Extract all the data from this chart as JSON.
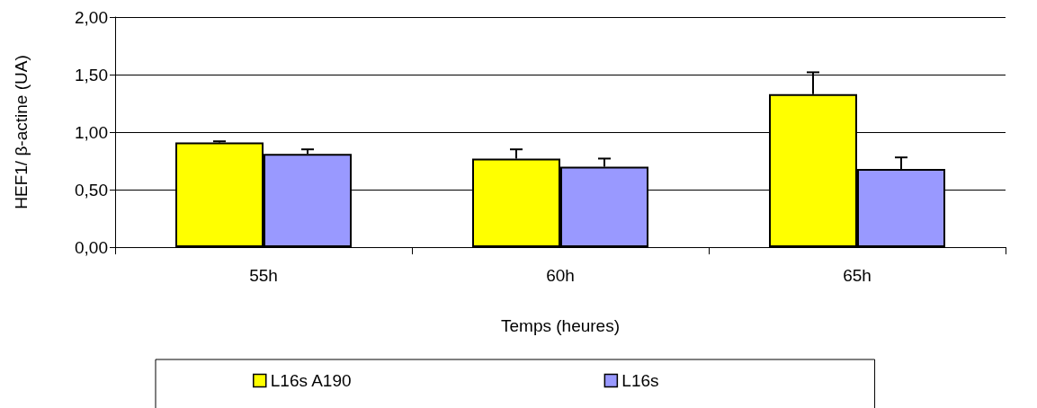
{
  "chart_data": {
    "type": "bar",
    "xlabel": "Temps (heures)",
    "ylabel": "HEF1/ β-actine (UA)",
    "categories": [
      "55h",
      "60h",
      "65h"
    ],
    "series": [
      {
        "name": "L16s A190",
        "color": "#ffff00",
        "values": [
          0.91,
          0.77,
          1.33
        ],
        "errors": [
          [
            0.91,
            0.92
          ],
          [
            0.77,
            0.85
          ],
          [
            1.33,
            1.52
          ]
        ]
      },
      {
        "name": "L16s",
        "color": "#9999ff",
        "values": [
          0.81,
          0.7,
          0.68
        ],
        "errors": [
          [
            0.81,
            0.85
          ],
          [
            0.7,
            0.77
          ],
          [
            0.68,
            0.78
          ]
        ]
      }
    ],
    "ylim": [
      0,
      2
    ],
    "yticks": [
      {
        "value": 0,
        "label": "0,00"
      },
      {
        "value": 0.5,
        "label": "0,50"
      },
      {
        "value": 1,
        "label": "1,00"
      },
      {
        "value": 1.5,
        "label": "1,50"
      },
      {
        "value": 2,
        "label": "2,00"
      }
    ],
    "grid": "y",
    "legend": "bottom"
  }
}
